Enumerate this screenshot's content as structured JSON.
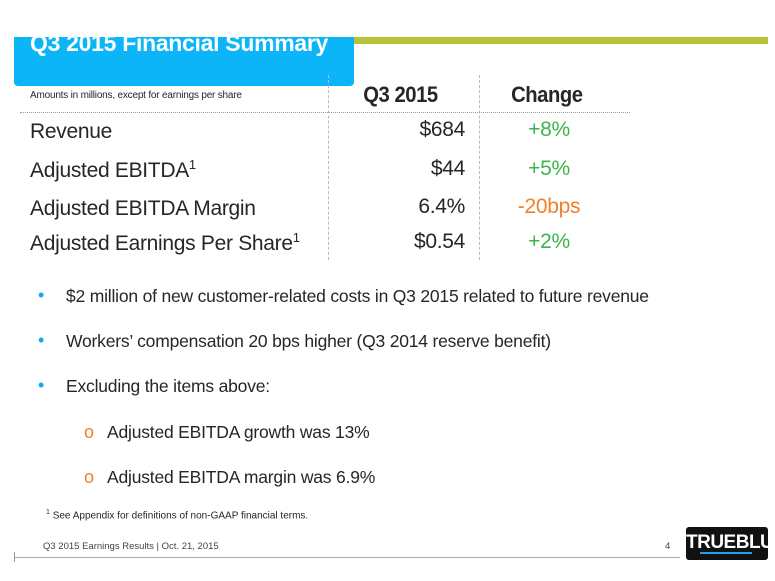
{
  "title": "Q3 2015 Financial Summary",
  "table": {
    "note": "Amounts in millions, except for earnings per share",
    "headers": [
      "Q3 2015",
      "Change"
    ],
    "rows": [
      {
        "label": "Revenue",
        "sup": "",
        "value": "$684",
        "change": "+8%",
        "change_color": "#3db34a"
      },
      {
        "label": "Adjusted EBITDA",
        "sup": "1",
        "value": "$44",
        "change": "+5%",
        "change_color": "#3db34a"
      },
      {
        "label": "Adjusted EBITDA Margin",
        "sup": "",
        "value": "6.4%",
        "change": "-20bps",
        "change_color": "#f07f2a"
      },
      {
        "label": "Adjusted Earnings Per Share",
        "sup": "1",
        "value": "$0.54",
        "change": "+2%",
        "change_color": "#3db34a"
      }
    ]
  },
  "bullets": [
    "$2 million of new customer-related costs in Q3 2015 related to future revenue",
    "Workers’ compensation 20 bps higher (Q3 2014 reserve benefit)",
    "Excluding the items above:"
  ],
  "sub_bullets": [
    "Adjusted EBITDA growth was 13%",
    "Adjusted EBITDA margin was 6.9%"
  ],
  "bullet_marker": "•",
  "sub_marker": "o",
  "footnote": {
    "sup": "1",
    "text": "See Appendix for definitions of non-GAAP financial terms."
  },
  "footer": {
    "text": "Q3 2015 Earnings Results | Oct. 21, 2015",
    "page": "4"
  },
  "logo": "TRUEBLUE"
}
